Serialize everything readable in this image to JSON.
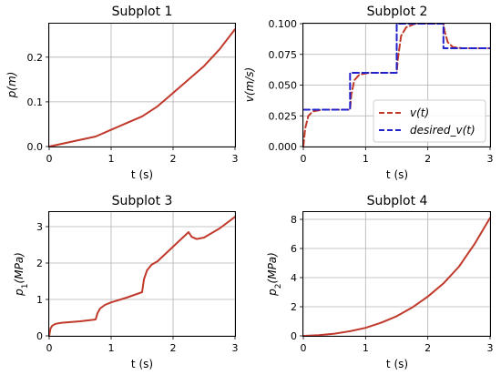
{
  "chart_data": [
    {
      "type": "line",
      "title": "Subplot 1",
      "xlabel": "t (s)",
      "ylabel": "p(m)",
      "xlim": [
        0,
        3
      ],
      "ylim": [
        0,
        0.275
      ],
      "xticks": [
        "0",
        "1",
        "2",
        "3"
      ],
      "yticks": [
        "0.0",
        "0.1",
        "0.2"
      ],
      "grid": true,
      "series": [
        {
          "color": "#c0392b",
          "style": "solid",
          "x": [
            0,
            0.5,
            0.75,
            1.0,
            1.25,
            1.5,
            1.75,
            2.0,
            2.25,
            2.5,
            2.75,
            3.0
          ],
          "y": [
            0,
            0.015,
            0.0225,
            0.0375,
            0.0525,
            0.0675,
            0.09,
            0.12,
            0.15,
            0.18,
            0.2175,
            0.2625
          ]
        }
      ]
    },
    {
      "type": "line",
      "title": "Subplot 2",
      "xlabel": "t (s)",
      "ylabel": "v(m/s)",
      "xlim": [
        0,
        3
      ],
      "ylim": [
        0,
        0.1
      ],
      "xticks": [
        "0",
        "1",
        "2",
        "3"
      ],
      "yticks": [
        "0.000",
        "0.025",
        "0.050",
        "0.075",
        "0.100"
      ],
      "grid": true,
      "legend": "lower-right",
      "series": [
        {
          "name": "v(t)",
          "color": "#c0392b",
          "style": "dashed",
          "x": [
            0,
            0.03,
            0.08,
            0.15,
            0.3,
            0.75,
            0.77,
            0.82,
            0.9,
            1.05,
            1.5,
            1.52,
            1.57,
            1.65,
            1.8,
            2.25,
            2.27,
            2.32,
            2.4,
            2.55,
            3.0
          ],
          "y": [
            0,
            0.015,
            0.025,
            0.0285,
            0.03,
            0.03,
            0.042,
            0.054,
            0.0585,
            0.06,
            0.06,
            0.072,
            0.09,
            0.097,
            0.1,
            0.1,
            0.094,
            0.085,
            0.081,
            0.08,
            0.08
          ]
        },
        {
          "name": "desired_v(t)",
          "color": "#2222cc",
          "style": "dashed",
          "x": [
            0,
            0.75,
            0.75,
            1.5,
            1.5,
            2.25,
            2.25,
            3.0
          ],
          "y": [
            0.03,
            0.03,
            0.06,
            0.06,
            0.1,
            0.1,
            0.08,
            0.08
          ]
        }
      ]
    },
    {
      "type": "line",
      "title": "Subplot 3",
      "xlabel": "t (s)",
      "ylabel": "p1(MPa)",
      "xlim": [
        0,
        3
      ],
      "ylim": [
        0,
        3.4
      ],
      "xticks": [
        "0",
        "1",
        "2",
        "3"
      ],
      "yticks": [
        "0",
        "1",
        "2",
        "3"
      ],
      "grid": true,
      "series": [
        {
          "color": "#c0392b",
          "style": "solid",
          "x": [
            0,
            0.02,
            0.05,
            0.1,
            0.2,
            0.5,
            0.75,
            0.78,
            0.82,
            0.9,
            1.0,
            1.25,
            1.5,
            1.53,
            1.58,
            1.65,
            1.75,
            2.0,
            2.25,
            2.3,
            2.38,
            2.5,
            2.75,
            3.0
          ],
          "y": [
            0,
            0.2,
            0.28,
            0.33,
            0.36,
            0.4,
            0.45,
            0.62,
            0.75,
            0.85,
            0.92,
            1.05,
            1.2,
            1.55,
            1.8,
            1.95,
            2.05,
            2.45,
            2.85,
            2.72,
            2.66,
            2.7,
            2.95,
            3.27
          ]
        }
      ]
    },
    {
      "type": "line",
      "title": "Subplot 4",
      "xlabel": "t (s)",
      "ylabel": "p2(MPa)",
      "xlim": [
        0,
        3
      ],
      "ylim": [
        0,
        8.5
      ],
      "xticks": [
        "0",
        "1",
        "2",
        "3"
      ],
      "yticks": [
        "0",
        "2",
        "4",
        "6",
        "8"
      ],
      "grid": true,
      "series": [
        {
          "color": "#c0392b",
          "style": "solid",
          "x": [
            0,
            0.25,
            0.5,
            0.75,
            1.0,
            1.25,
            1.5,
            1.75,
            2.0,
            2.25,
            2.5,
            2.75,
            3.0
          ],
          "y": [
            0,
            0.05,
            0.15,
            0.32,
            0.55,
            0.9,
            1.35,
            1.95,
            2.7,
            3.6,
            4.75,
            6.3,
            8.1
          ]
        }
      ]
    }
  ]
}
